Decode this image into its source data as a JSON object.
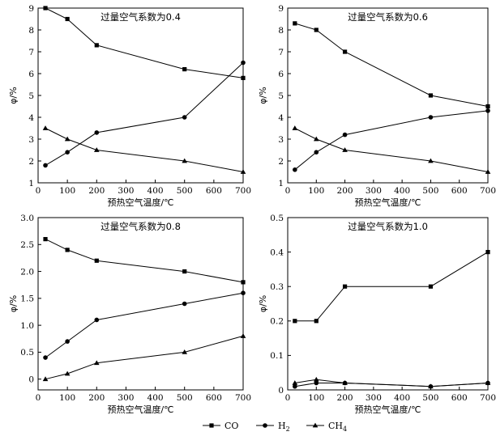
{
  "chart_data": [
    {
      "type": "line",
      "title": "过量空气系数为0.4",
      "xlabel": "预热空气温度/℃",
      "ylabel": "φ/%",
      "x": [
        25,
        100,
        200,
        500,
        700
      ],
      "xlim": [
        0,
        700
      ],
      "xticks": [
        0,
        100,
        200,
        300,
        400,
        500,
        600,
        700
      ],
      "ylim": [
        1,
        9
      ],
      "yticks": [
        1,
        2,
        3,
        4,
        5,
        6,
        7,
        8,
        9
      ],
      "ytick_decimals": 0,
      "grid": false,
      "series": [
        {
          "name": "CO",
          "values": [
            9.0,
            8.5,
            7.3,
            6.2,
            5.8
          ]
        },
        {
          "name": "H2",
          "values": [
            1.8,
            2.4,
            3.3,
            4.0,
            6.5
          ]
        },
        {
          "name": "CH4",
          "values": [
            3.5,
            3.0,
            2.5,
            2.0,
            1.5
          ]
        }
      ]
    },
    {
      "type": "line",
      "title": "过量空气系数为0.6",
      "xlabel": "预热空气温度/℃",
      "ylabel": "φ/%",
      "x": [
        25,
        100,
        200,
        500,
        700
      ],
      "xlim": [
        0,
        700
      ],
      "xticks": [
        0,
        100,
        200,
        300,
        400,
        500,
        600,
        700
      ],
      "ylim": [
        1,
        9
      ],
      "yticks": [
        1,
        2,
        3,
        4,
        5,
        6,
        7,
        8,
        9
      ],
      "ytick_decimals": 0,
      "grid": false,
      "series": [
        {
          "name": "CO",
          "values": [
            8.3,
            8.0,
            7.0,
            5.0,
            4.5
          ]
        },
        {
          "name": "H2",
          "values": [
            1.6,
            2.4,
            3.2,
            4.0,
            4.3
          ]
        },
        {
          "name": "CH4",
          "values": [
            3.5,
            3.0,
            2.5,
            2.0,
            1.5
          ]
        }
      ]
    },
    {
      "type": "line",
      "title": "过量空气系数为0.8",
      "xlabel": "预热空气温度/℃",
      "ylabel": "φ/%",
      "x": [
        25,
        100,
        200,
        500,
        700
      ],
      "xlim": [
        0,
        700
      ],
      "xticks": [
        0,
        100,
        200,
        300,
        400,
        500,
        600,
        700
      ],
      "ylim": [
        -0.2,
        3.0
      ],
      "yticks": [
        0,
        0.5,
        1.0,
        1.5,
        2.0,
        2.5,
        3.0
      ],
      "ytick_decimals": 1,
      "ytick_zero_plain": true,
      "grid": false,
      "series": [
        {
          "name": "CO",
          "values": [
            2.6,
            2.4,
            2.2,
            2.0,
            1.8
          ]
        },
        {
          "name": "H2",
          "values": [
            0.4,
            0.7,
            1.1,
            1.4,
            1.6
          ]
        },
        {
          "name": "CH4",
          "values": [
            0.0,
            0.1,
            0.3,
            0.5,
            0.8
          ]
        }
      ]
    },
    {
      "type": "line",
      "title": "过量空气系数为1.0",
      "xlabel": "预热空气温度/℃",
      "ylabel": "φ/%",
      "x": [
        25,
        100,
        200,
        500,
        700
      ],
      "xlim": [
        0,
        700
      ],
      "xticks": [
        0,
        100,
        200,
        300,
        400,
        500,
        600,
        700
      ],
      "ylim": [
        0,
        0.5
      ],
      "yticks": [
        0,
        0.1,
        0.2,
        0.3,
        0.4,
        0.5
      ],
      "ytick_decimals": 1,
      "ytick_zero_plain": true,
      "grid": false,
      "series": [
        {
          "name": "CO",
          "values": [
            0.2,
            0.2,
            0.3,
            0.3,
            0.4
          ]
        },
        {
          "name": "H2",
          "values": [
            0.01,
            0.02,
            0.02,
            0.01,
            0.02
          ]
        },
        {
          "name": "CH4",
          "values": [
            0.02,
            0.03,
            0.02,
            0.01,
            0.02
          ]
        }
      ],
      "legend_placement": "bottom-center"
    }
  ],
  "legend": [
    {
      "label": "CO",
      "marker": "square"
    },
    {
      "label": "H",
      "sub": "2",
      "marker": "circle"
    },
    {
      "label": "CH",
      "sub": "4",
      "marker": "triangle"
    }
  ],
  "colors": {
    "line": "#000000",
    "background": "#ffffff"
  }
}
